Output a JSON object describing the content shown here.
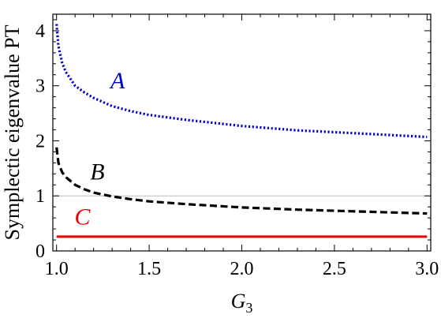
{
  "chart_data": {
    "type": "line",
    "xlabel": {
      "main": "G",
      "sub": "3"
    },
    "ylabel": "Symplectic eigenvalue PT",
    "xlim": [
      0.98,
      3.02
    ],
    "ylim": [
      0,
      4.3
    ],
    "xticks": [
      1.0,
      1.5,
      2.0,
      2.5,
      3.0
    ],
    "xtick_labels": [
      "1.0",
      "1.5",
      "2.0",
      "2.5",
      "3.0"
    ],
    "yticks": [
      0,
      1,
      2,
      3,
      4
    ],
    "ytick_labels": [
      "0",
      "1",
      "2",
      "3",
      "4"
    ],
    "grid": false,
    "reference_line": {
      "y": 1,
      "color": "#bbbbbb"
    },
    "series": [
      {
        "name": "A",
        "color": "#0000cc",
        "style": "dotted",
        "x": [
          1.0,
          1.01,
          1.03,
          1.05,
          1.1,
          1.15,
          1.2,
          1.3,
          1.4,
          1.5,
          1.7,
          2.0,
          2.3,
          2.6,
          3.0
        ],
        "y": [
          4.12,
          3.72,
          3.42,
          3.25,
          3.0,
          2.88,
          2.78,
          2.63,
          2.54,
          2.47,
          2.38,
          2.27,
          2.19,
          2.14,
          2.07
        ]
      },
      {
        "name": "B",
        "color": "#000000",
        "style": "dashed",
        "x": [
          1.0,
          1.01,
          1.03,
          1.05,
          1.1,
          1.15,
          1.2,
          1.3,
          1.4,
          1.5,
          1.7,
          2.0,
          2.3,
          2.6,
          3.0
        ],
        "y": [
          1.88,
          1.6,
          1.43,
          1.34,
          1.2,
          1.12,
          1.06,
          0.99,
          0.94,
          0.9,
          0.85,
          0.79,
          0.75,
          0.72,
          0.68
        ]
      },
      {
        "name": "C",
        "color": "#ee0000",
        "style": "solid",
        "x": [
          1.0,
          3.0
        ],
        "y": [
          0.26,
          0.26
        ]
      }
    ],
    "annotations": [
      {
        "text": "A",
        "color": "#0000cc",
        "x": 1.33,
        "y": 2.95
      },
      {
        "text": "B",
        "color": "#000000",
        "x": 1.22,
        "y": 1.3
      },
      {
        "text": "C",
        "color": "#ee0000",
        "x": 1.14,
        "y": 0.48
      }
    ]
  }
}
